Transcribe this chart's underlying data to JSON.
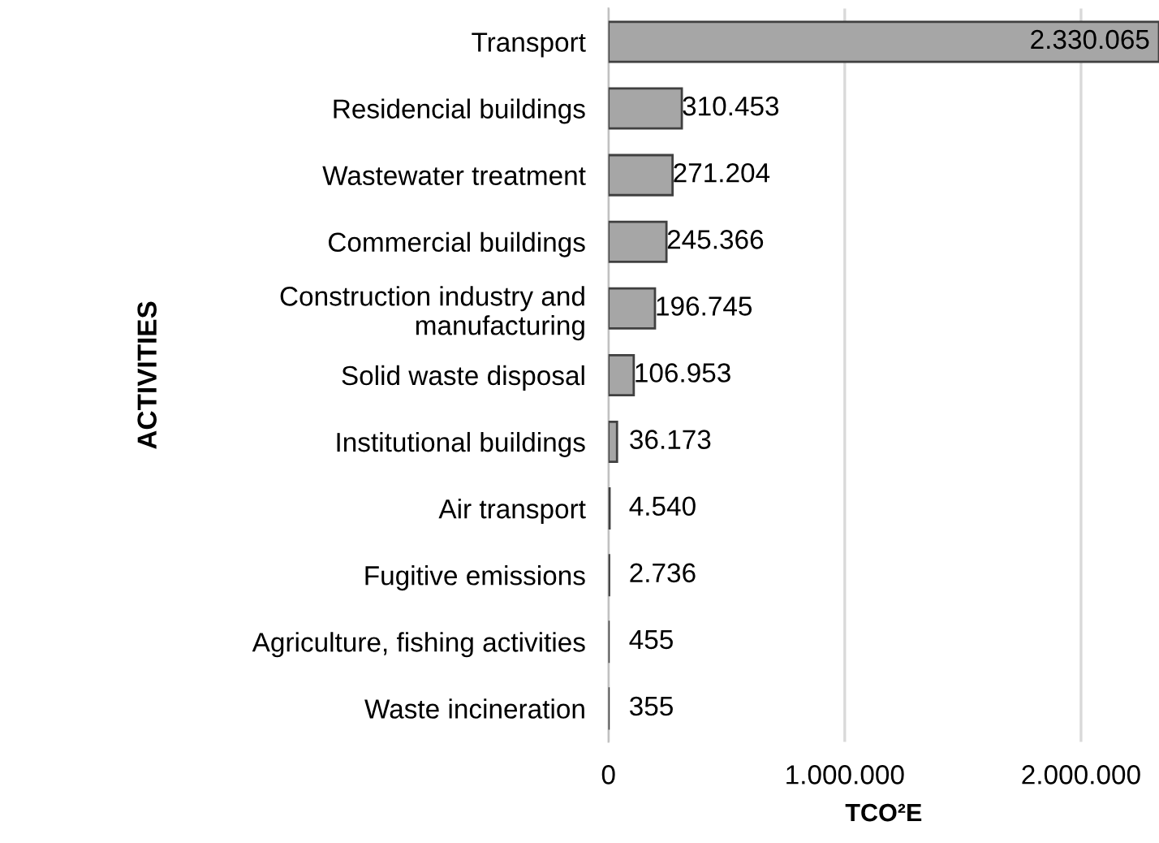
{
  "chart_data": {
    "type": "bar",
    "orientation": "horizontal",
    "xlabel": "TCO²E",
    "ylabel": "ACTIVITIES",
    "categories": [
      "Transport",
      "Residencial buildings",
      "Wastewater treatment",
      "Commercial buildings",
      "Construction industry and\nmanufacturing",
      "Solid waste disposal",
      "Institutional buildings",
      "Air transport",
      "Fugitive emissions",
      "Agriculture, fishing activities",
      "Waste incineration"
    ],
    "values": [
      2330065,
      310453,
      271204,
      245366,
      196745,
      106953,
      36173,
      4540,
      2736,
      455,
      355
    ],
    "value_labels": [
      "2.330.065",
      "310.453",
      "271.204",
      "245.366",
      "196.745",
      "106.953",
      "36.173",
      "4.540",
      "2.736",
      "455",
      "355"
    ],
    "color": "#a6a6a6",
    "xlim": [
      0,
      2330065
    ],
    "xticks": [
      0,
      {
        "value": 1000000,
        "label": "1.000.000"
      },
      {
        "value": 2000000,
        "label": "2.000.000"
      }
    ],
    "grid": "x"
  }
}
